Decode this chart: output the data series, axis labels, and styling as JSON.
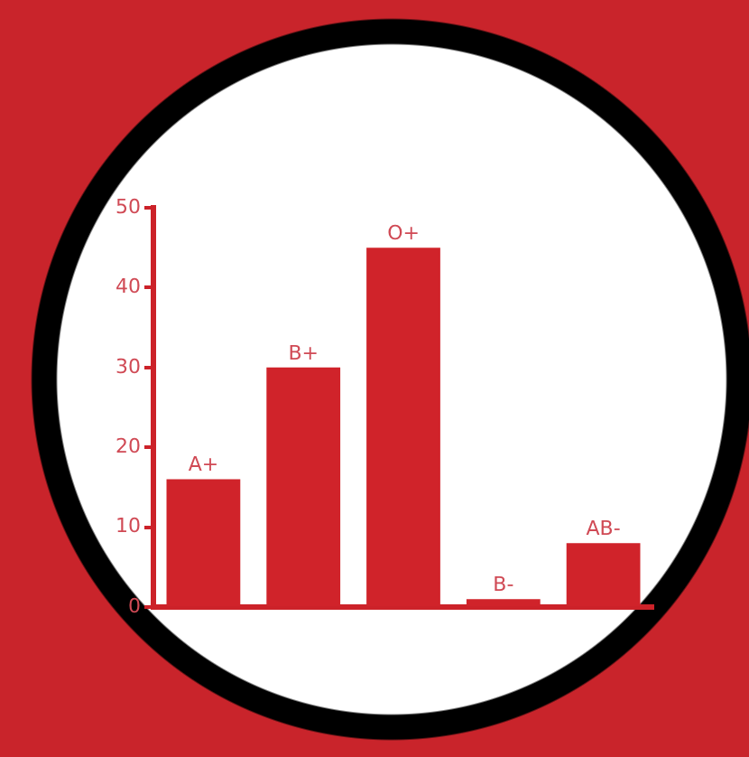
{
  "chart_data": {
    "type": "bar",
    "categories": [
      "A+",
      "B+",
      "O+",
      "B-",
      "AB-"
    ],
    "values": [
      16,
      30,
      45,
      1,
      8
    ],
    "color": "#d0232a",
    "ylim": [
      0,
      50
    ],
    "yticks": [
      0,
      10,
      20,
      30,
      40,
      50
    ],
    "grid": false,
    "legend": false
  }
}
